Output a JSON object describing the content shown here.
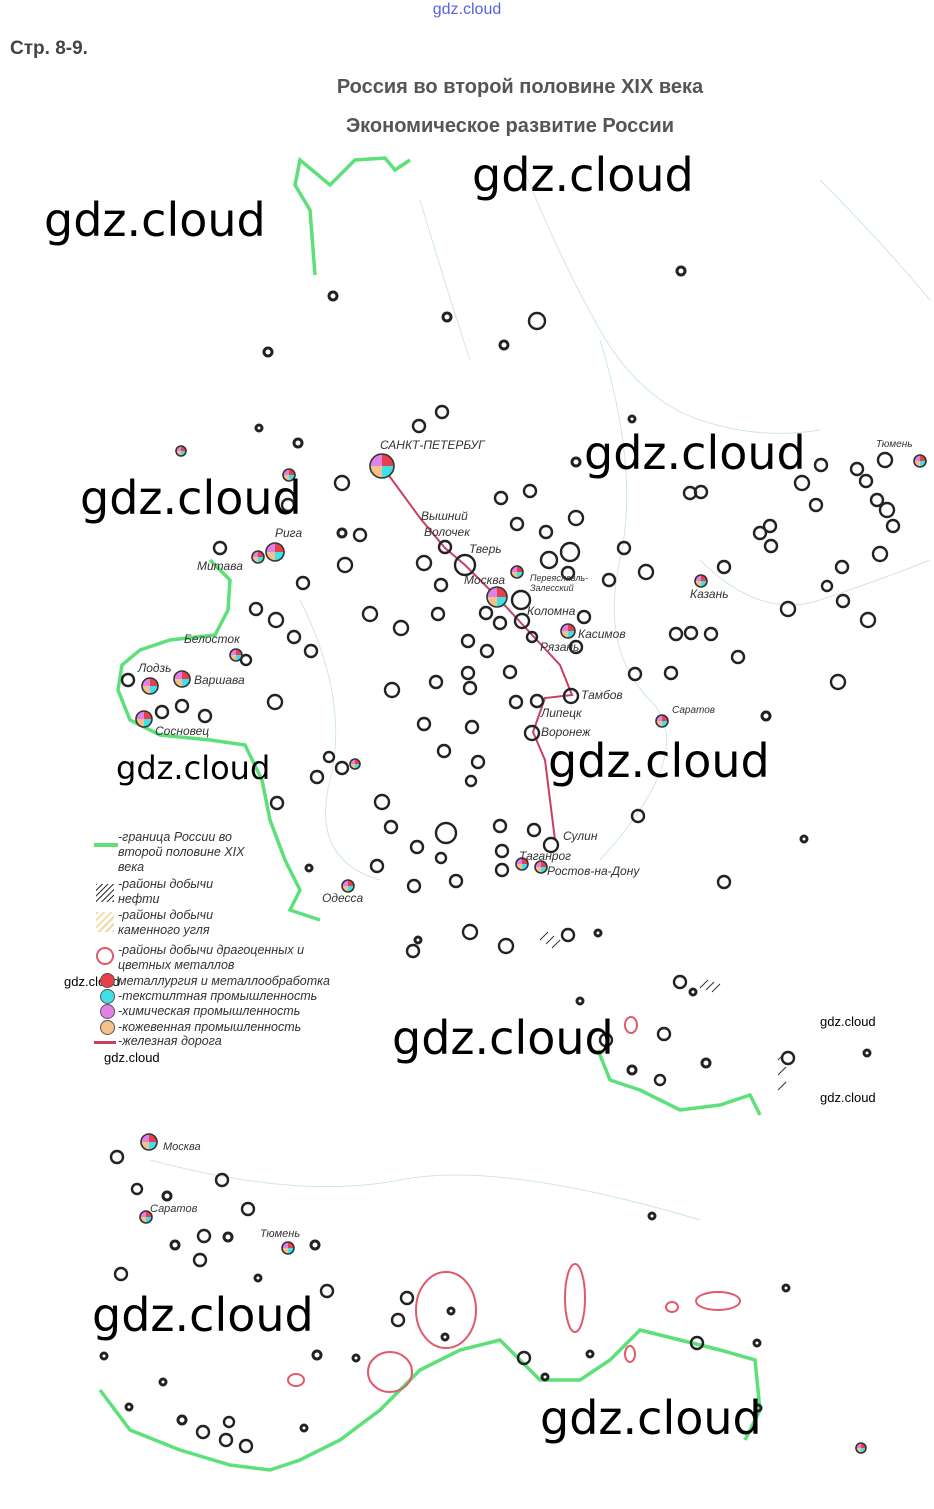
{
  "watermark_top": "gdz.cloud",
  "page_ref": "Стр. 8-9.",
  "title": "Россия во второй половине XIX века",
  "subtitle": "Экономическое развитие России",
  "watermarks": [
    "gdz.cloud",
    "gdz.cloud",
    "gdz.cloud",
    "gdz.cloud",
    "gdz.cloud",
    "gdz.cloud",
    "gdz.cloud",
    "gdz.cloud",
    "gdz.cloud",
    "gdz.cloud",
    "gdz.cloud",
    "gdz.cloud",
    "gdz.cloud"
  ],
  "cities": [
    "САНКТ-ПЕТЕРБУГ",
    "Вышний",
    "Волочек",
    "Тверь",
    "Москва",
    "Переяславль-",
    "Залесский",
    "Коломна",
    "Касимов",
    "Рязань",
    "Тамбов",
    "Липецк",
    "Воронеж",
    "Сулин",
    "Таганрог",
    "Ростов-на-Дону",
    "Саратов",
    "Казань",
    "Тюмень",
    "Рига",
    "Митава",
    "Белосток",
    "Лодзь",
    "Варшава",
    "Сосновец",
    "Одесса"
  ],
  "inset_cities": [
    "Москва",
    "Саратов",
    "Тюмень"
  ],
  "legend": [
    {
      "label": "-граница России во",
      "label2": "второй половине XIX",
      "label3": "века",
      "color": "#5de07a"
    },
    {
      "label": "-районы добычи",
      "label2": "нефти"
    },
    {
      "label": "-районы добычи",
      "label2": "каменного угля",
      "color": "#f3d9a0"
    },
    {
      "label": "-районы добычи драгоценных и",
      "label2": "цветных металлов",
      "color": "#e05a6a"
    },
    {
      "label": "металлургия и металлообработка",
      "color": "#e8404a"
    },
    {
      "label": "-текстилтная промышленность",
      "color": "#3fe0e8"
    },
    {
      "label": "-химическая промышленность",
      "color": "#e080e8"
    },
    {
      "label": "-кожевенная промышленность",
      "color": "#f5c08a"
    },
    {
      "label": "-железная дорога",
      "color": "#c84060"
    }
  ]
}
